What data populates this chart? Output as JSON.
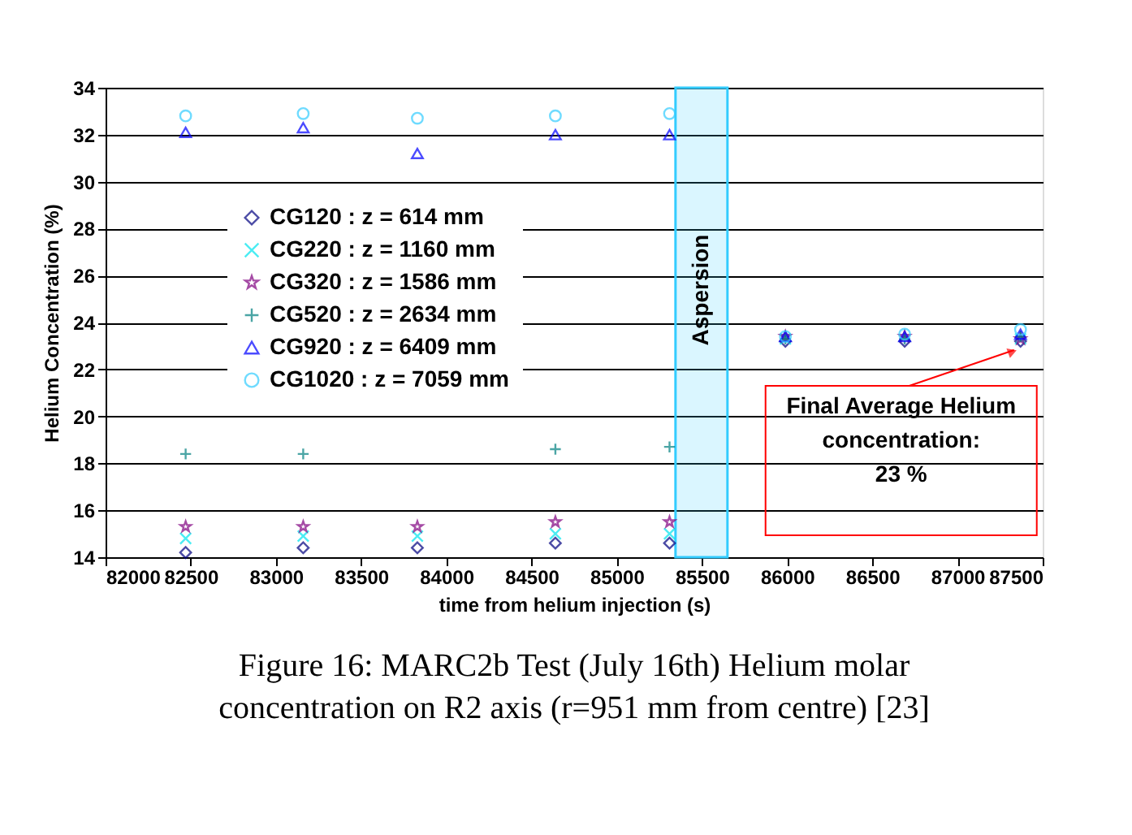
{
  "chart_data": {
    "type": "scatter",
    "title": "Figure 16: MARC2b Test (July 16th) Helium molar\nconcentration on R2 axis (r=951 mm from centre) [23]",
    "xlabel": "time from helium injection (s)",
    "ylabel": "Helium Concentration (%)",
    "x": [
      82470,
      83160,
      83830,
      84640,
      85310,
      85990,
      86690,
      87370
    ],
    "series": [
      {
        "name": "CG120 : z = 614 mm",
        "color": "#000080",
        "marker": "diamond",
        "values": [
          14.2,
          14.4,
          14.4,
          14.6,
          14.6,
          23.2,
          23.2,
          23.2
        ]
      },
      {
        "name": "CG220 : z = 1160 mm",
        "color": "#00e5ee",
        "marker": "x",
        "values": [
          14.8,
          14.9,
          14.9,
          15.0,
          15.0,
          23.3,
          null,
          23.3
        ]
      },
      {
        "name": "CG320 : z = 1586 mm",
        "color": "#800080",
        "marker": "star",
        "values": [
          15.3,
          15.3,
          15.3,
          15.5,
          15.5,
          23.4,
          23.4,
          23.3
        ]
      },
      {
        "name": "CG520 : z = 2634 mm",
        "color": "#008080",
        "marker": "cross",
        "values": [
          18.4,
          18.4,
          null,
          18.6,
          18.7,
          23.3,
          23.3,
          23.4
        ]
      },
      {
        "name": "CG920 : z = 6409 mm",
        "color": "#0000ff",
        "marker": "triangle",
        "values": [
          32.1,
          32.3,
          31.2,
          32.0,
          32.0,
          23.4,
          23.4,
          23.5
        ]
      },
      {
        "name": "CG1020 : z = 7059 mm",
        "color": "#33ccff",
        "marker": "circle",
        "values": [
          32.8,
          32.9,
          32.7,
          32.8,
          32.9,
          23.4,
          23.5,
          23.7
        ]
      }
    ],
    "xlim": [
      82000,
      87500
    ],
    "xticks": [
      82000,
      82500,
      83000,
      83500,
      84000,
      84500,
      85000,
      85500,
      86000,
      86500,
      87000,
      87500
    ],
    "ylim": [
      14,
      34
    ],
    "yticks": [
      14,
      16,
      18,
      20,
      22,
      24,
      26,
      28,
      30,
      32,
      34
    ],
    "bands": [
      {
        "axis": "x",
        "from": 85345,
        "to": 85650,
        "label": "Aspersion",
        "color": "#33ccff"
      }
    ],
    "annotations": [
      {
        "text": "Final Average Helium\nconcentration:\n23 %",
        "x": 87370,
        "y": 23.1
      }
    ],
    "grid": "y",
    "legend": "left"
  }
}
